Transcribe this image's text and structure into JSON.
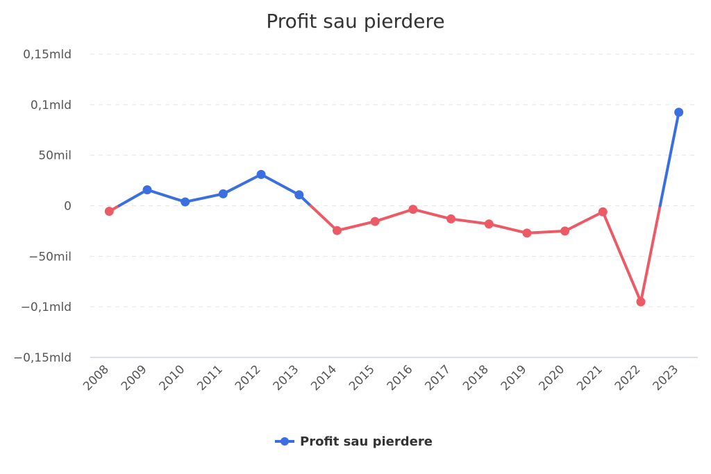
{
  "chart_data": {
    "type": "line",
    "title": "Profit sau pierdere",
    "xlabel": "",
    "ylabel": "",
    "categories": [
      "2008",
      "2009",
      "2010",
      "2011",
      "2012",
      "2013",
      "2014",
      "2015",
      "2016",
      "2017",
      "2018",
      "2019",
      "2020",
      "2021",
      "2022",
      "2023"
    ],
    "series": [
      {
        "name": "Profit sau pierdere",
        "values": [
          -5500,
          15800,
          3800,
          11800,
          31000,
          10800,
          -24500,
          -15500,
          -3500,
          -13000,
          -18000,
          -27000,
          -25000,
          -6000,
          -95000,
          92500
        ]
      }
    ],
    "ylim": [
      -150000,
      150000
    ],
    "yticks": [
      {
        "value": 150000,
        "label": "0,15mld"
      },
      {
        "value": 100000,
        "label": "0,1mld"
      },
      {
        "value": 50000,
        "label": "50mil"
      },
      {
        "value": 0,
        "label": "0"
      },
      {
        "value": -50000,
        "label": "−50mil"
      },
      {
        "value": -100000,
        "label": "−0,1mld"
      },
      {
        "value": -150000,
        "label": "−0,15mld"
      }
    ],
    "colors": {
      "positive": "#3b6fe0",
      "negative": "#ec5a66"
    },
    "grid": true,
    "legend": "bottom-center"
  }
}
